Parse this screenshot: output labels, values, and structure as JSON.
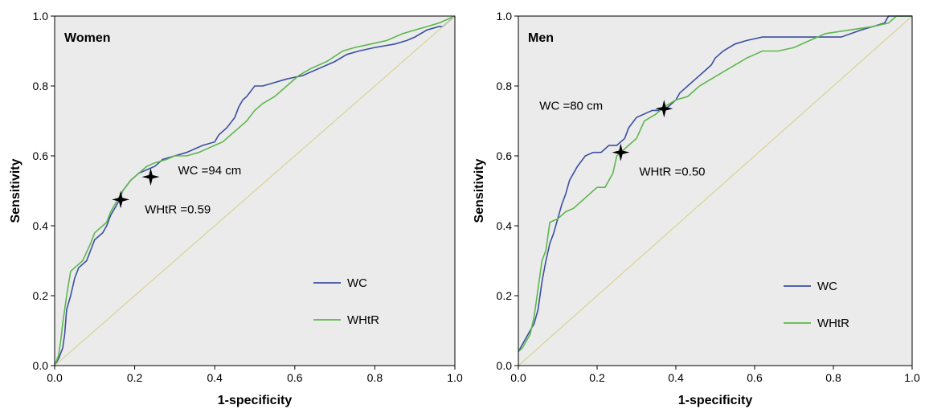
{
  "chart_data": [
    {
      "type": "line",
      "title": "Women",
      "xlabel": "1-specificity",
      "ylabel": "Sensitivity",
      "xlim": [
        0,
        1
      ],
      "ylim": [
        0,
        1
      ],
      "xticks": [
        "0.0",
        "0.2",
        "0.4",
        "0.6",
        "0.8",
        "1.0"
      ],
      "yticks": [
        "0.0",
        "0.2",
        "0.4",
        "0.6",
        "0.8",
        "1.0"
      ],
      "legend_position": "bottom-right",
      "plot_background": "#ebebeb",
      "series": [
        {
          "name": "WC",
          "color": "#3b4fa0",
          "x": [
            0,
            0.01,
            0.02,
            0.025,
            0.03,
            0.04,
            0.05,
            0.06,
            0.08,
            0.09,
            0.1,
            0.12,
            0.13,
            0.14,
            0.15,
            0.16,
            0.17,
            0.19,
            0.21,
            0.23,
            0.25,
            0.27,
            0.3,
            0.33,
            0.37,
            0.4,
            0.41,
            0.43,
            0.45,
            0.46,
            0.47,
            0.48,
            0.5,
            0.52,
            0.55,
            0.58,
            0.62,
            0.66,
            0.7,
            0.73,
            0.76,
            0.8,
            0.85,
            0.88,
            0.9,
            0.93,
            0.96,
            0.97,
            0.98,
            1.0
          ],
          "y": [
            0,
            0.02,
            0.05,
            0.09,
            0.16,
            0.2,
            0.25,
            0.28,
            0.3,
            0.33,
            0.36,
            0.38,
            0.4,
            0.43,
            0.45,
            0.47,
            0.5,
            0.53,
            0.55,
            0.56,
            0.57,
            0.59,
            0.6,
            0.61,
            0.63,
            0.64,
            0.66,
            0.68,
            0.71,
            0.74,
            0.76,
            0.77,
            0.8,
            0.8,
            0.81,
            0.82,
            0.83,
            0.85,
            0.87,
            0.89,
            0.9,
            0.91,
            0.92,
            0.93,
            0.94,
            0.96,
            0.97,
            0.97,
            0.98,
            1.0
          ]
        },
        {
          "name": "WHtR",
          "color": "#5cb84c",
          "x": [
            0,
            0.01,
            0.015,
            0.02,
            0.03,
            0.04,
            0.05,
            0.07,
            0.09,
            0.1,
            0.12,
            0.13,
            0.14,
            0.15,
            0.17,
            0.19,
            0.21,
            0.23,
            0.25,
            0.28,
            0.3,
            0.33,
            0.36,
            0.38,
            0.4,
            0.42,
            0.44,
            0.46,
            0.48,
            0.5,
            0.52,
            0.55,
            0.58,
            0.61,
            0.64,
            0.68,
            0.72,
            0.75,
            0.79,
            0.83,
            0.87,
            0.9,
            0.93,
            0.96,
            0.98,
            1.0
          ],
          "y": [
            0,
            0.03,
            0.07,
            0.12,
            0.2,
            0.27,
            0.28,
            0.3,
            0.35,
            0.38,
            0.4,
            0.41,
            0.44,
            0.46,
            0.5,
            0.53,
            0.55,
            0.57,
            0.58,
            0.59,
            0.6,
            0.6,
            0.61,
            0.62,
            0.63,
            0.64,
            0.66,
            0.68,
            0.7,
            0.73,
            0.75,
            0.77,
            0.8,
            0.83,
            0.85,
            0.87,
            0.9,
            0.91,
            0.92,
            0.93,
            0.95,
            0.96,
            0.97,
            0.98,
            0.99,
            1.0
          ]
        },
        {
          "name": "",
          "color": "#d9d59a",
          "x": [
            0,
            1
          ],
          "y": [
            0,
            1
          ]
        }
      ],
      "cutoffs": [
        {
          "label": "WC =94 cm",
          "x": 0.24,
          "y": 0.54
        },
        {
          "label": "WHtR =0.59",
          "x": 0.165,
          "y": 0.475
        }
      ]
    },
    {
      "type": "line",
      "title": "Men",
      "xlabel": "1-specificity",
      "ylabel": "Sensitivity",
      "xlim": [
        0,
        1
      ],
      "ylim": [
        0,
        1
      ],
      "xticks": [
        "0.0",
        "0.2",
        "0.4",
        "0.6",
        "0.8",
        "1.0"
      ],
      "yticks": [
        "0.0",
        "0.2",
        "0.4",
        "0.6",
        "0.8",
        "1.0"
      ],
      "legend_position": "bottom-right",
      "plot_background": "#ebebeb",
      "series": [
        {
          "name": "WC",
          "color": "#3b4fa0",
          "x": [
            0,
            0.01,
            0.02,
            0.03,
            0.04,
            0.05,
            0.06,
            0.07,
            0.08,
            0.09,
            0.1,
            0.11,
            0.12,
            0.13,
            0.14,
            0.15,
            0.17,
            0.19,
            0.21,
            0.23,
            0.25,
            0.27,
            0.28,
            0.3,
            0.32,
            0.34,
            0.36,
            0.38,
            0.4,
            0.41,
            0.43,
            0.45,
            0.47,
            0.49,
            0.5,
            0.52,
            0.55,
            0.58,
            0.62,
            0.65,
            0.7,
            0.76,
            0.82,
            0.87,
            0.9,
            0.93,
            0.94,
            1.0
          ],
          "y": [
            0.04,
            0.06,
            0.08,
            0.1,
            0.12,
            0.16,
            0.24,
            0.3,
            0.35,
            0.38,
            0.42,
            0.46,
            0.49,
            0.53,
            0.55,
            0.57,
            0.6,
            0.61,
            0.61,
            0.63,
            0.63,
            0.65,
            0.68,
            0.71,
            0.72,
            0.73,
            0.73,
            0.74,
            0.76,
            0.78,
            0.8,
            0.82,
            0.84,
            0.86,
            0.88,
            0.9,
            0.92,
            0.93,
            0.94,
            0.94,
            0.94,
            0.94,
            0.94,
            0.96,
            0.97,
            0.98,
            1.0,
            1.0
          ]
        },
        {
          "name": "WHtR",
          "color": "#5cb84c",
          "x": [
            0,
            0.01,
            0.02,
            0.03,
            0.04,
            0.05,
            0.06,
            0.07,
            0.08,
            0.1,
            0.12,
            0.14,
            0.16,
            0.18,
            0.2,
            0.22,
            0.24,
            0.25,
            0.26,
            0.28,
            0.3,
            0.32,
            0.35,
            0.37,
            0.4,
            0.43,
            0.46,
            0.49,
            0.52,
            0.55,
            0.58,
            0.62,
            0.66,
            0.7,
            0.74,
            0.78,
            0.84,
            0.9,
            0.94,
            0.96,
            1.0
          ],
          "y": [
            0.04,
            0.05,
            0.07,
            0.09,
            0.14,
            0.22,
            0.3,
            0.33,
            0.41,
            0.42,
            0.44,
            0.45,
            0.47,
            0.49,
            0.51,
            0.51,
            0.55,
            0.6,
            0.61,
            0.63,
            0.65,
            0.7,
            0.72,
            0.74,
            0.76,
            0.77,
            0.8,
            0.82,
            0.84,
            0.86,
            0.88,
            0.9,
            0.9,
            0.91,
            0.93,
            0.95,
            0.96,
            0.97,
            0.98,
            1.0,
            1.0
          ]
        },
        {
          "name": "",
          "color": "#d9d59a",
          "x": [
            0,
            1
          ],
          "y": [
            0,
            1
          ]
        }
      ],
      "cutoffs": [
        {
          "label": "WC =80 cm",
          "x": 0.37,
          "y": 0.735
        },
        {
          "label": "WHtR =0.50",
          "x": 0.26,
          "y": 0.61
        }
      ]
    }
  ]
}
